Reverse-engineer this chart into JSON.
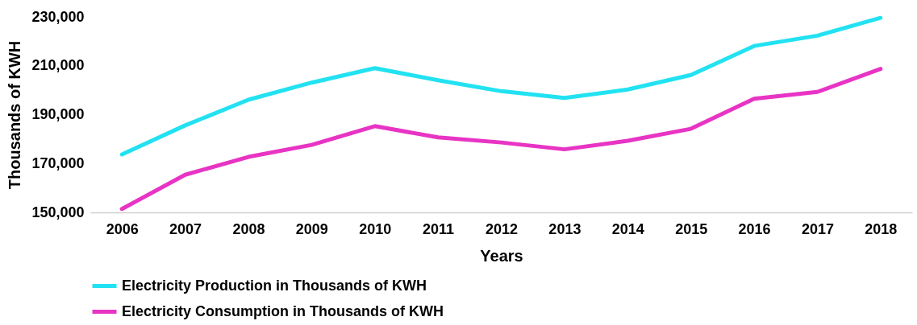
{
  "chart_data": {
    "type": "line",
    "xlabel": "Years",
    "ylabel": "Thousands of KWH",
    "categories": [
      "2006",
      "2007",
      "2008",
      "2009",
      "2010",
      "2011",
      "2012",
      "2013",
      "2014",
      "2015",
      "2016",
      "2017",
      "2018"
    ],
    "series": [
      {
        "name": "Electricity Production in Thousands of KWH",
        "color": "#22e2f2",
        "values": [
          173700,
          185600,
          196100,
          203100,
          209000,
          204100,
          199600,
          196800,
          200300,
          206200,
          218100,
          222300,
          229600
        ]
      },
      {
        "name": "Electricity Consumption in Thousands of KWH",
        "color": "#e834c4",
        "values": [
          151400,
          165400,
          172700,
          177600,
          185300,
          180700,
          178600,
          175800,
          179300,
          184200,
          196500,
          199300,
          208700
        ]
      }
    ],
    "ylim": [
      150000,
      230000
    ],
    "yticks": [
      {
        "value": 150000,
        "label": "150,000"
      },
      {
        "value": 170000,
        "label": "170,000"
      },
      {
        "value": 190000,
        "label": "190,000"
      },
      {
        "value": 210000,
        "label": "210,000"
      },
      {
        "value": 230000,
        "label": "230,000"
      }
    ],
    "grid": false,
    "legend": "bottom",
    "marker": "none",
    "line_style": "solid"
  }
}
